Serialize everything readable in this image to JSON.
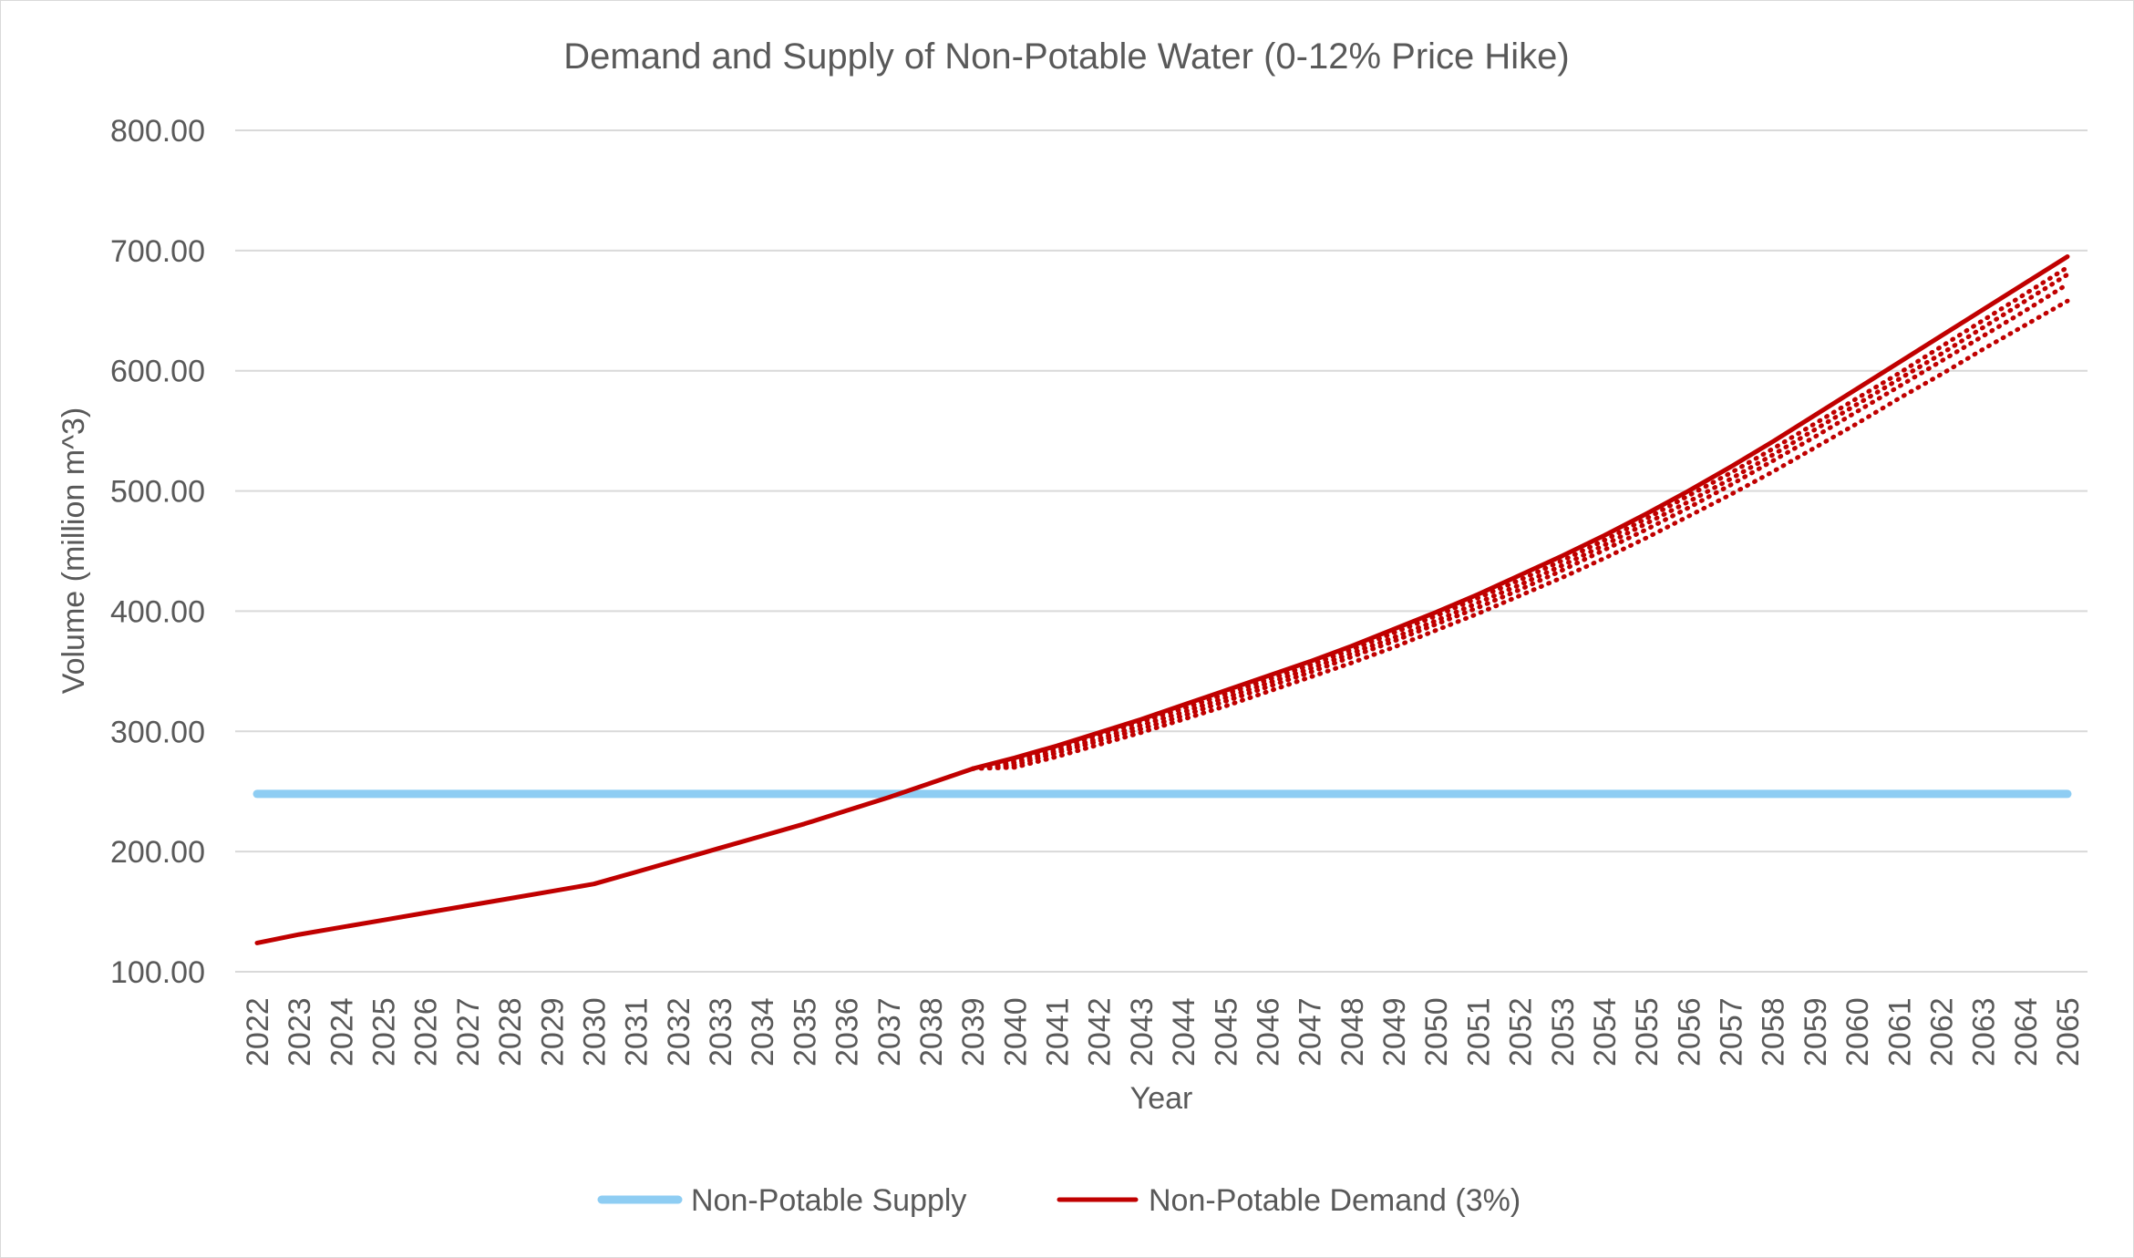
{
  "chart_data": {
    "type": "line",
    "title": "Demand and Supply of Non-Potable Water (0-12% Price Hike)",
    "xlabel": "Year",
    "ylabel": "Volume (million m^3)",
    "ylim": [
      100,
      800
    ],
    "y_ticks": [
      "100.00",
      "200.00",
      "300.00",
      "400.00",
      "500.00",
      "600.00",
      "700.00",
      "800.00"
    ],
    "categories": [
      "2022",
      "2023",
      "2024",
      "2025",
      "2026",
      "2027",
      "2028",
      "2029",
      "2030",
      "2031",
      "2032",
      "2033",
      "2034",
      "2035",
      "2036",
      "2037",
      "2038",
      "2039",
      "2040",
      "2041",
      "2042",
      "2043",
      "2044",
      "2045",
      "2046",
      "2047",
      "2048",
      "2049",
      "2050",
      "2051",
      "2052",
      "2053",
      "2054",
      "2055",
      "2056",
      "2057",
      "2058",
      "2059",
      "2060",
      "2061",
      "2062",
      "2063",
      "2064",
      "2065"
    ],
    "grid": true,
    "legend_position": "bottom",
    "series": [
      {
        "name": "Non-Potable Supply",
        "color": "#8ecdf3",
        "style": "solid-thick",
        "values": [
          248,
          248,
          248,
          248,
          248,
          248,
          248,
          248,
          248,
          248,
          248,
          248,
          248,
          248,
          248,
          248,
          248,
          248,
          248,
          248,
          248,
          248,
          248,
          248,
          248,
          248,
          248,
          248,
          248,
          248,
          248,
          248,
          248,
          248,
          248,
          248,
          248,
          248,
          248,
          248,
          248,
          248,
          248,
          248
        ]
      },
      {
        "name": "Non-Potable Demand (3%)",
        "color": "#c00000",
        "style": "solid",
        "values": [
          124,
          131,
          137,
          143,
          149,
          155,
          161,
          167,
          173,
          183,
          193,
          203,
          213,
          223,
          234,
          245,
          257,
          269,
          278,
          288,
          299,
          310,
          322,
          334,
          346,
          358,
          371,
          385,
          399,
          414,
          430,
          446,
          463,
          481,
          500,
          520,
          541,
          563,
          585,
          607,
          629,
          651,
          673,
          695
        ]
      },
      {
        "name": "",
        "color": "#c00000",
        "style": "dotted",
        "values": [
          null,
          null,
          null,
          null,
          null,
          null,
          null,
          null,
          null,
          null,
          null,
          null,
          null,
          null,
          null,
          null,
          null,
          269,
          276,
          286,
          297,
          308,
          319,
          331,
          343,
          355,
          368,
          382,
          396,
          411,
          426,
          442,
          459,
          477,
          496,
          515,
          535,
          556,
          577,
          598,
          620,
          642,
          664,
          686
        ]
      },
      {
        "name": "",
        "color": "#c00000",
        "style": "dotted",
        "values": [
          null,
          null,
          null,
          null,
          null,
          null,
          null,
          null,
          null,
          null,
          null,
          null,
          null,
          null,
          null,
          null,
          null,
          269,
          274,
          284,
          294,
          305,
          316,
          328,
          340,
          352,
          365,
          378,
          392,
          407,
          422,
          438,
          455,
          473,
          491,
          510,
          530,
          551,
          572,
          593,
          614,
          636,
          658,
          680
        ]
      },
      {
        "name": "",
        "color": "#c00000",
        "style": "dotted",
        "values": [
          null,
          null,
          null,
          null,
          null,
          null,
          null,
          null,
          null,
          null,
          null,
          null,
          null,
          null,
          null,
          null,
          null,
          269,
          272,
          282,
          292,
          302,
          313,
          325,
          337,
          349,
          362,
          375,
          389,
          403,
          418,
          434,
          451,
          468,
          486,
          505,
          525,
          545,
          566,
          587,
          608,
          629,
          650,
          672
        ]
      },
      {
        "name": "",
        "color": "#c00000",
        "style": "dotted",
        "values": [
          null,
          null,
          null,
          null,
          null,
          null,
          null,
          null,
          null,
          null,
          null,
          null,
          null,
          null,
          null,
          null,
          null,
          269,
          270,
          279,
          289,
          299,
          310,
          321,
          333,
          345,
          357,
          370,
          384,
          398,
          413,
          428,
          444,
          461,
          479,
          497,
          516,
          536,
          556,
          577,
          597,
          618,
          638,
          658
        ]
      }
    ]
  }
}
